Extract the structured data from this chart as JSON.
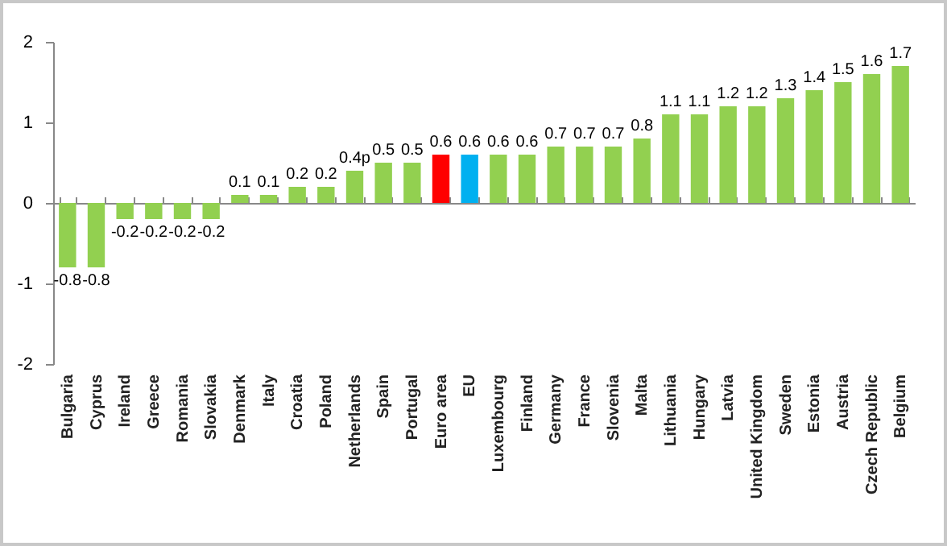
{
  "chart_data": {
    "type": "bar",
    "categories": [
      "Bulgaria",
      "Cyprus",
      "Ireland",
      "Greece",
      "Romania",
      "Slovakia",
      "Denmark",
      "Italy",
      "Croatia",
      "Poland",
      "Netherlands",
      "Spain",
      "Portugal",
      "Euro area",
      "EU",
      "Luxembourg",
      "Finland",
      "Germany",
      "France",
      "Slovenia",
      "Malta",
      "Lithuania",
      "Hungary",
      "Latvia",
      "United Kingdom",
      "Sweden",
      "Estonia",
      "Austria",
      "Czech Republic",
      "Belgium"
    ],
    "values": [
      -0.8,
      -0.8,
      -0.2,
      -0.2,
      -0.2,
      -0.2,
      0.1,
      0.1,
      0.2,
      0.2,
      0.4,
      0.5,
      0.5,
      0.6,
      0.6,
      0.6,
      0.6,
      0.7,
      0.7,
      0.7,
      0.8,
      1.1,
      1.1,
      1.2,
      1.2,
      1.3,
      1.4,
      1.5,
      1.6,
      1.7
    ],
    "value_labels": [
      "-0.8",
      "-0.8",
      "-0.2",
      "-0.2",
      "-0.2",
      "-0.2",
      "0.1",
      "0.1",
      "0.2",
      "0.2",
      "0.4p",
      "0.5",
      "0.5",
      "0.6",
      "0.6",
      "0.6",
      "0.6",
      "0.7",
      "0.7",
      "0.7",
      "0.8",
      "1.1",
      "1.1",
      "1.2",
      "1.2",
      "1.3",
      "1.4",
      "1.5",
      "1.6",
      "1.7"
    ],
    "colors": [
      "#92d050",
      "#92d050",
      "#92d050",
      "#92d050",
      "#92d050",
      "#92d050",
      "#92d050",
      "#92d050",
      "#92d050",
      "#92d050",
      "#92d050",
      "#92d050",
      "#92d050",
      "#ff0000",
      "#00b0f0",
      "#92d050",
      "#92d050",
      "#92d050",
      "#92d050",
      "#92d050",
      "#92d050",
      "#92d050",
      "#92d050",
      "#92d050",
      "#92d050",
      "#92d050",
      "#92d050",
      "#92d050",
      "#92d050",
      "#92d050"
    ],
    "ylim": [
      -2,
      2
    ],
    "yticks": [
      -2,
      -1,
      0,
      1,
      2
    ]
  }
}
